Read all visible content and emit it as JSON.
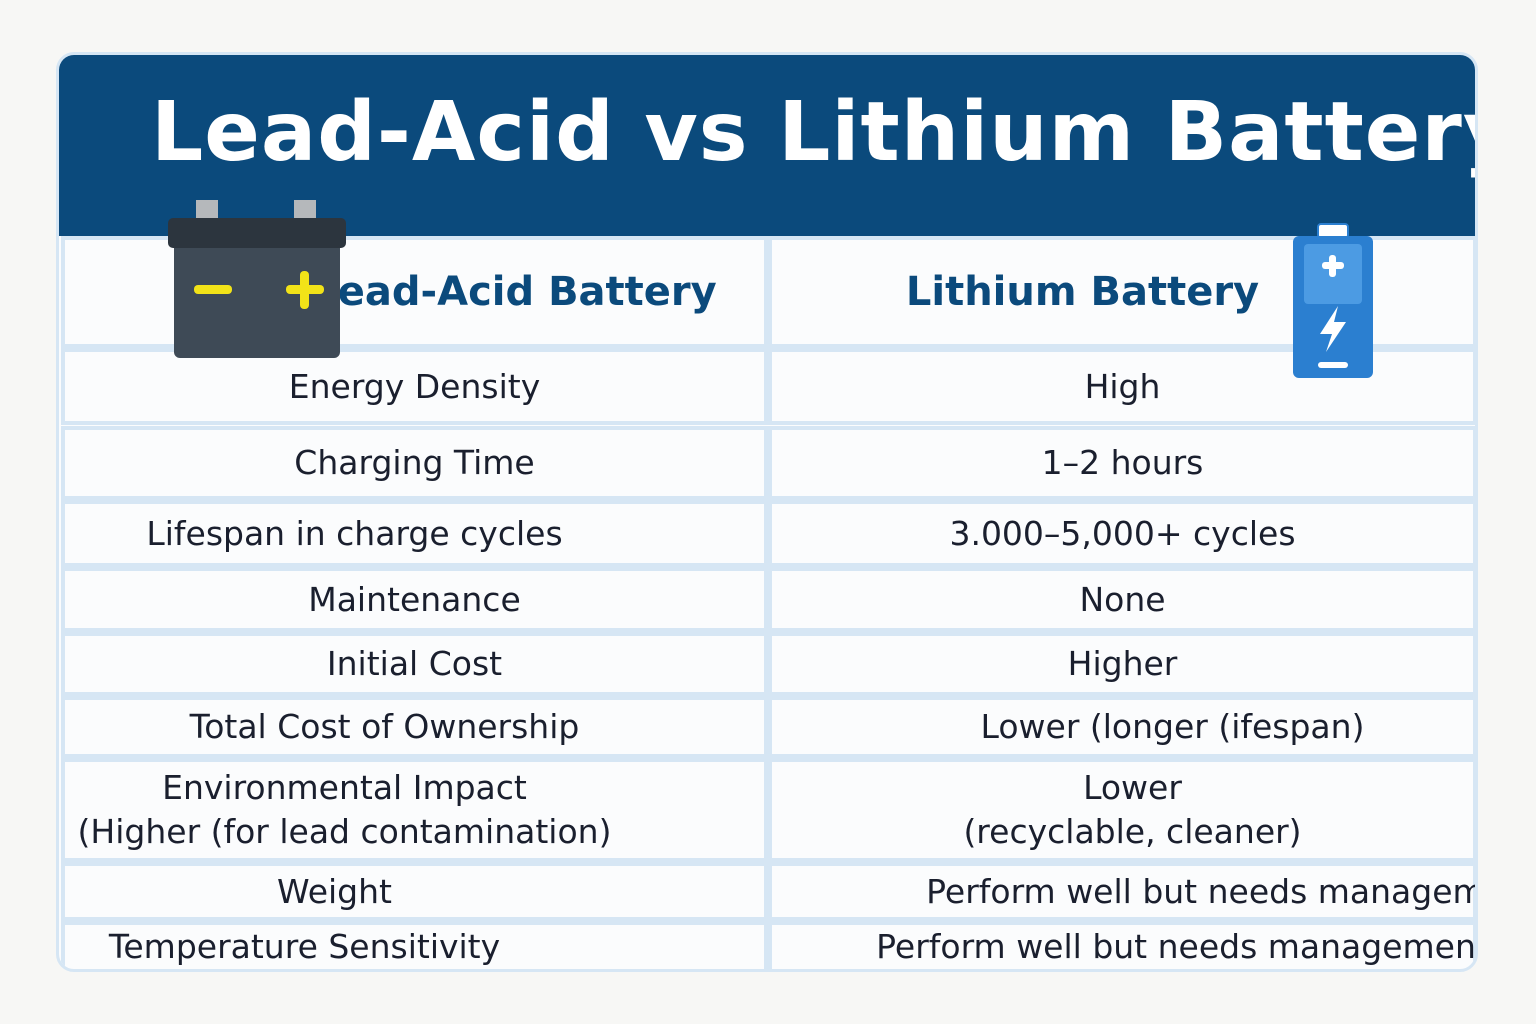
{
  "header": {
    "title": "Lead-Acid vs Lithium Battery"
  },
  "table": {
    "columns": [
      "Lead-Acid Battery",
      "Lithium Battery"
    ],
    "rows": [
      [
        [
          "Energy Density"
        ],
        [
          "High"
        ]
      ],
      [
        [
          "Charging Time"
        ],
        [
          "1–2 hours"
        ]
      ],
      [
        [
          "Lifespan in charge cycles"
        ],
        [
          "3.000–5,000+ cycles"
        ]
      ],
      [
        [
          "Maintenance"
        ],
        [
          "None"
        ]
      ],
      [
        [
          "Initial Cost"
        ],
        [
          "Higher"
        ]
      ],
      [
        [
          "Total Cost of Ownership"
        ],
        [
          "Lower (longer (ifespan)"
        ]
      ],
      [
        [
          "Environmental Impact",
          "(Higher (for lead contamination)"
        ],
        [
          "Lower",
          "(recyclable, cleaner)"
        ]
      ],
      [
        [
          "Weight"
        ],
        [
          "Perform well but needs management"
        ]
      ],
      [
        [
          "Temperature Sensitivity"
        ],
        [
          "Perform well but needs management"
        ]
      ]
    ]
  }
}
